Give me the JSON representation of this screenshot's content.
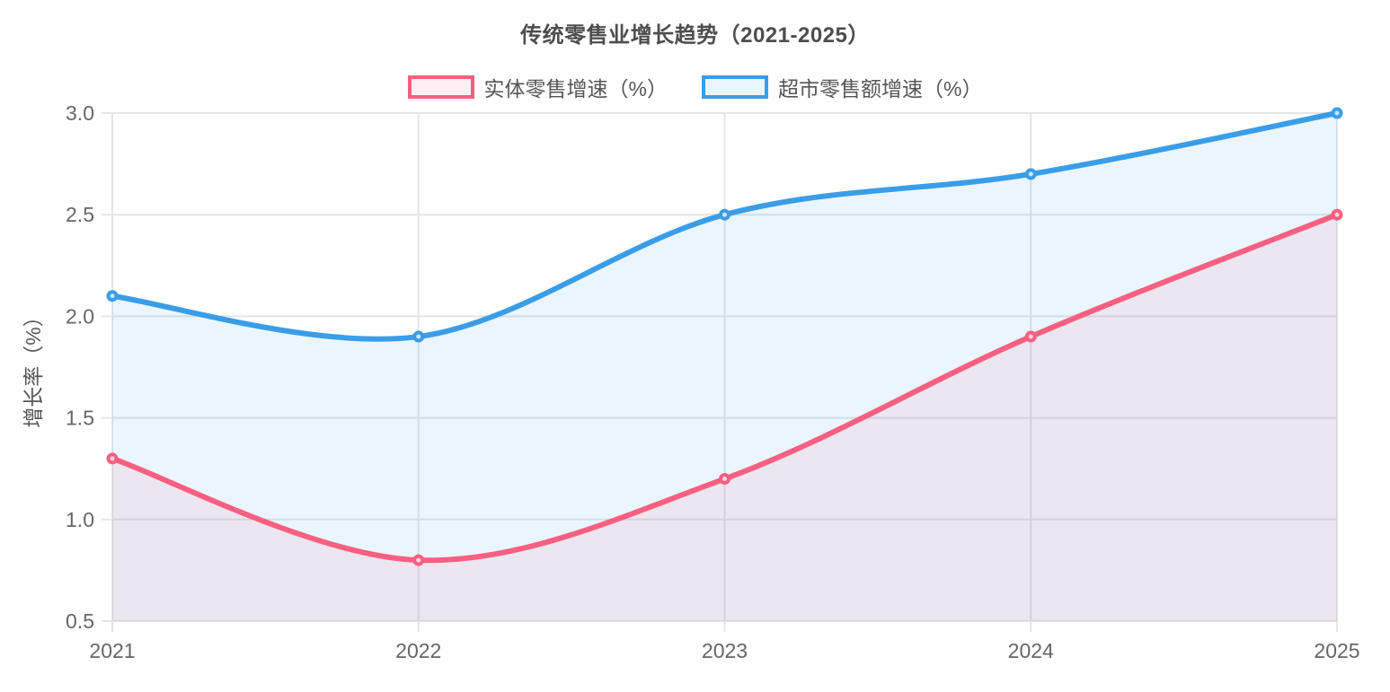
{
  "page": {
    "background": "#ffffff"
  },
  "chart_data": {
    "type": "line",
    "title": "传统零售业增长趋势（2021-2025）",
    "categories": [
      "2021",
      "2022",
      "2023",
      "2024",
      "2025"
    ],
    "series": [
      {
        "key": "physical-retail",
        "name": "实体零售增速（%）",
        "values": [
          1.3,
          0.8,
          1.2,
          1.9,
          2.5
        ],
        "color": "#F85F80",
        "fill_opacity": 0.1
      },
      {
        "key": "supermarket-retail",
        "name": "超市零售额增速（%）",
        "values": [
          2.1,
          1.9,
          2.5,
          2.7,
          3.0
        ],
        "color": "#3A9DE8",
        "fill_opacity": 0.1
      }
    ],
    "xlabel": "",
    "ylabel": "增长率（%）",
    "ylim": [
      0.5,
      3.0
    ],
    "ytick_step": 0.5,
    "yticks": [
      "0.5",
      "1.0",
      "1.5",
      "2.0",
      "2.5",
      "3.0"
    ],
    "grid": true,
    "legend_position": "top",
    "line_style": "smooth",
    "area_fill": true,
    "point_style": "open-circle"
  },
  "colors": {
    "grid": "#E5E5E5",
    "tick_text": "#666666",
    "axis_title_text": "#555555",
    "title_text": "#4D4D4D",
    "legend_text": "#555555",
    "point_center": "#FFFFFF"
  }
}
